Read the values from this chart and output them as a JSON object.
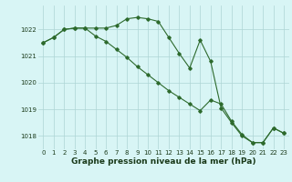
{
  "line1_x": [
    0,
    1,
    2,
    3,
    4,
    5,
    6,
    7,
    8,
    9,
    10,
    11,
    12,
    13,
    14,
    15,
    16,
    17,
    18,
    19,
    20,
    21,
    22,
    23
  ],
  "line1_y": [
    1021.5,
    1021.7,
    1022.0,
    1022.05,
    1022.05,
    1022.05,
    1022.05,
    1022.15,
    1022.4,
    1022.45,
    1022.4,
    1022.3,
    1021.7,
    1021.1,
    1020.55,
    1021.6,
    1020.8,
    1019.05,
    1018.5,
    1018.0,
    1017.75,
    1017.75,
    1018.3,
    1018.1
  ],
  "line2_x": [
    0,
    1,
    2,
    3,
    4,
    5,
    6,
    7,
    8,
    9,
    10,
    11,
    12,
    13,
    14,
    15,
    16,
    17,
    18,
    19,
    20,
    21,
    22,
    23
  ],
  "line2_y": [
    1021.5,
    1021.7,
    1022.0,
    1022.05,
    1022.05,
    1021.75,
    1021.55,
    1021.25,
    1020.95,
    1020.6,
    1020.3,
    1020.0,
    1019.7,
    1019.45,
    1019.2,
    1018.95,
    1019.35,
    1019.2,
    1018.55,
    1018.05,
    1017.75,
    1017.75,
    1018.3,
    1018.1
  ],
  "line_color": "#2d6a2d",
  "bg_color": "#d8f5f5",
  "grid_color": "#aed4d4",
  "xlabel": "Graphe pression niveau de la mer (hPa)",
  "xlabel_color": "#1a3a1a",
  "ylim": [
    1017.5,
    1022.9
  ],
  "xlim": [
    -0.5,
    23.5
  ],
  "yticks": [
    1018,
    1019,
    1020,
    1021,
    1022
  ],
  "xticks": [
    0,
    1,
    2,
    3,
    4,
    5,
    6,
    7,
    8,
    9,
    10,
    11,
    12,
    13,
    14,
    15,
    16,
    17,
    18,
    19,
    20,
    21,
    22,
    23
  ],
  "tick_fontsize": 5.0,
  "xlabel_fontsize": 6.5,
  "marker": "D",
  "markersize": 1.8,
  "linewidth": 0.8
}
